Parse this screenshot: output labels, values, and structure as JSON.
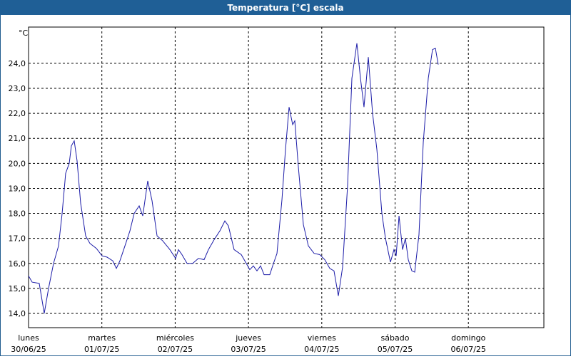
{
  "chart_data": {
    "type": "line",
    "title": "Temperatura [°C] escala",
    "y_unit": "°C",
    "x": [
      0,
      0.049,
      0.146,
      0.214,
      0.273,
      0.341,
      0.409,
      0.458,
      0.506,
      0.555,
      0.584,
      0.623,
      0.662,
      0.711,
      0.779,
      0.837,
      0.925,
      1.003,
      1.071,
      1.149,
      1.198,
      1.246,
      1.315,
      1.383,
      1.441,
      1.509,
      1.558,
      1.626,
      1.685,
      1.753,
      1.831,
      1.928,
      2.006,
      2.045,
      2.093,
      2.162,
      2.24,
      2.317,
      2.395,
      2.454,
      2.532,
      2.61,
      2.678,
      2.726,
      2.804,
      2.902,
      2.97,
      3.018,
      3.067,
      3.116,
      3.165,
      3.213,
      3.291,
      3.33,
      3.389,
      3.457,
      3.505,
      3.554,
      3.603,
      3.632,
      3.681,
      3.749,
      3.817,
      3.895,
      3.973,
      4.041,
      4.109,
      4.167,
      4.226,
      4.284,
      4.352,
      4.411,
      4.479,
      4.528,
      4.576,
      4.635,
      4.693,
      4.752,
      4.82,
      4.869,
      4.937,
      4.985,
      5.015,
      5.054,
      5.102,
      5.141,
      5.18,
      5.229,
      5.268,
      5.326,
      5.385,
      5.453,
      5.511,
      5.55,
      5.589
    ],
    "series": [
      {
        "name": "Temperatura",
        "color": "#1c1ca8",
        "values": [
          15.5,
          15.25,
          15.2,
          14.0,
          15.0,
          16.0,
          16.7,
          18.0,
          19.6,
          20.0,
          20.7,
          20.9,
          20.1,
          18.4,
          17.1,
          16.8,
          16.6,
          16.3,
          16.25,
          16.1,
          15.8,
          16.1,
          16.7,
          17.3,
          18.0,
          18.3,
          17.9,
          19.3,
          18.5,
          17.1,
          16.9,
          16.55,
          16.2,
          16.55,
          16.35,
          16.0,
          16.0,
          16.2,
          16.15,
          16.55,
          16.95,
          17.3,
          17.7,
          17.5,
          16.55,
          16.35,
          16.0,
          15.75,
          15.9,
          15.7,
          15.9,
          15.55,
          15.55,
          15.9,
          16.4,
          18.55,
          20.55,
          22.25,
          21.55,
          21.7,
          19.85,
          17.55,
          16.7,
          16.4,
          16.35,
          16.15,
          15.8,
          15.7,
          14.7,
          15.85,
          19.1,
          23.4,
          24.8,
          23.4,
          22.25,
          24.25,
          22.0,
          20.55,
          18.0,
          17.0,
          16.05,
          16.55,
          16.3,
          17.9,
          16.55,
          17.0,
          16.15,
          15.7,
          15.65,
          17.15,
          20.85,
          23.4,
          24.55,
          24.6,
          23.95
        ]
      }
    ],
    "xlim": [
      0,
      7.03
    ],
    "xticks": [
      {
        "value": 0,
        "label": "30/06/25"
      },
      {
        "value": 1,
        "label": "01/07/25"
      },
      {
        "value": 2,
        "label": "02/07/25"
      },
      {
        "value": 3,
        "label": "03/07/25"
      },
      {
        "value": 4,
        "label": "04/07/25"
      },
      {
        "value": 5,
        "label": "05/07/25"
      },
      {
        "value": 6,
        "label": "06/07/25"
      }
    ],
    "x_weekdays": [
      "lunes",
      "martes",
      "miércoles",
      "jueves",
      "viernes",
      "sábado",
      "domingo"
    ],
    "ylim": [
      13.43,
      25.45
    ],
    "yticks": [
      {
        "value": 14,
        "label": "14,0"
      },
      {
        "value": 15,
        "label": "15,0"
      },
      {
        "value": 16,
        "label": "16,0"
      },
      {
        "value": 17,
        "label": "17,0"
      },
      {
        "value": 18,
        "label": "18,0"
      },
      {
        "value": 19,
        "label": "19,0"
      },
      {
        "value": 20,
        "label": "20,0"
      },
      {
        "value": 21,
        "label": "21,0"
      },
      {
        "value": 22,
        "label": "22,0"
      },
      {
        "value": 23,
        "label": "23,0"
      },
      {
        "value": 24,
        "label": "24,0"
      }
    ],
    "grid": true
  }
}
